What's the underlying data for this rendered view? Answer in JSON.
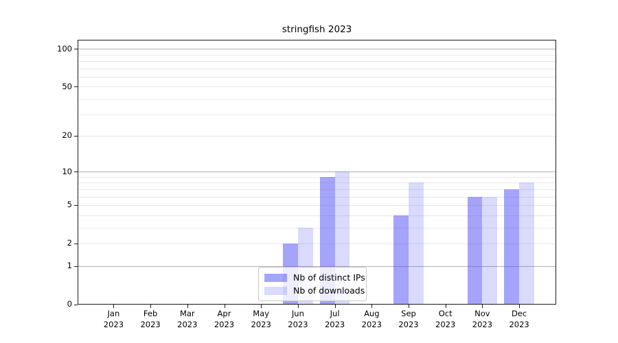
{
  "chart_data": {
    "type": "bar",
    "title": "stringfish 2023",
    "categories": [
      {
        "month": "Jan",
        "year": "2023"
      },
      {
        "month": "Feb",
        "year": "2023"
      },
      {
        "month": "Mar",
        "year": "2023"
      },
      {
        "month": "Apr",
        "year": "2023"
      },
      {
        "month": "May",
        "year": "2023"
      },
      {
        "month": "Jun",
        "year": "2023"
      },
      {
        "month": "Jul",
        "year": "2023"
      },
      {
        "month": "Aug",
        "year": "2023"
      },
      {
        "month": "Sep",
        "year": "2023"
      },
      {
        "month": "Oct",
        "year": "2023"
      },
      {
        "month": "Nov",
        "year": "2023"
      },
      {
        "month": "Dec",
        "year": "2023"
      }
    ],
    "series": [
      {
        "name": "Nb of distinct IPs",
        "color": "rgba(80,80,245,0.52)",
        "values": [
          0,
          0,
          0,
          0,
          0,
          2,
          9,
          0,
          4,
          0,
          6,
          7
        ]
      },
      {
        "name": "Nb of downloads",
        "color": "rgba(80,80,245,0.21)",
        "values": [
          0,
          0,
          0,
          0,
          0,
          3,
          10,
          0,
          8,
          0,
          6,
          8
        ]
      }
    ],
    "y_axis": {
      "scale": "log2(1+x)",
      "range": [
        0,
        100
      ],
      "ticks": [
        {
          "value": 0,
          "label": "0"
        },
        {
          "value": 1,
          "label": "1"
        },
        {
          "value": 2,
          "label": "2"
        },
        {
          "value": 5,
          "label": "5"
        },
        {
          "value": 10,
          "label": "10"
        },
        {
          "value": 20,
          "label": "20"
        },
        {
          "value": 50,
          "label": "50"
        },
        {
          "value": 100,
          "label": "100"
        }
      ],
      "major_gridlines": [
        1,
        10,
        100
      ],
      "minor_gridlines": [
        2,
        3,
        4,
        5,
        6,
        7,
        8,
        9,
        20,
        30,
        40,
        50,
        60,
        70,
        80,
        90
      ]
    },
    "legend": {
      "position": "lower center"
    },
    "grid": true,
    "colors": {
      "grid_major": "#b0b0b0",
      "grid_minor": "#e7e7e7",
      "spine": "#1a1a1a",
      "text": "#000000"
    }
  }
}
